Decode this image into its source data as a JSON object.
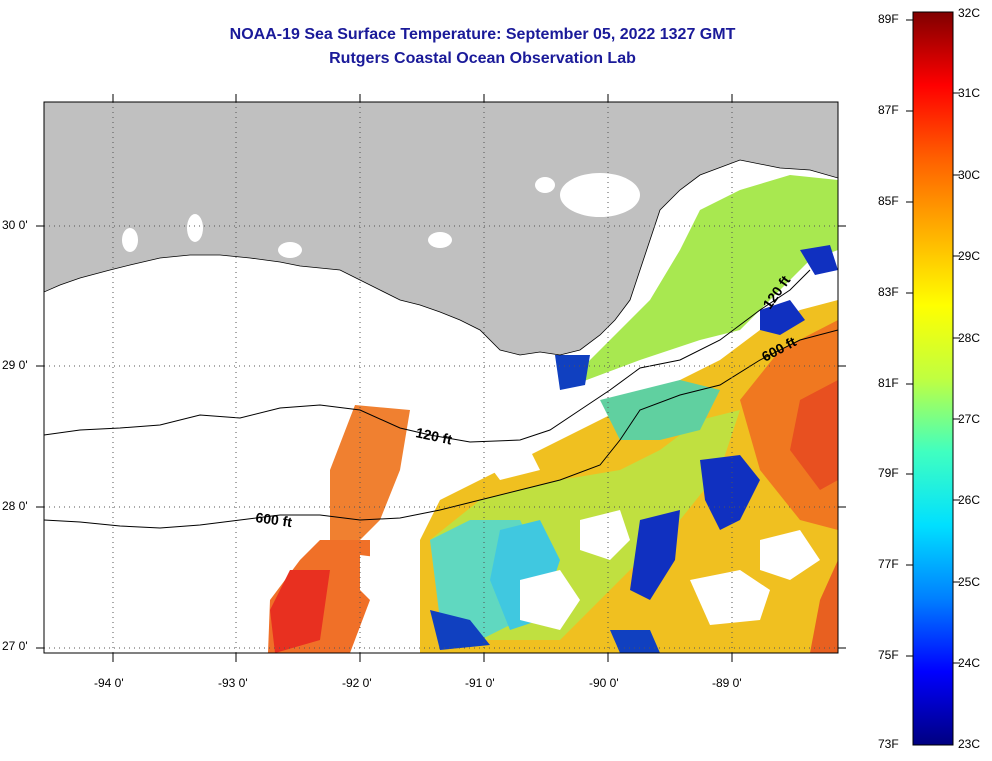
{
  "header": {
    "title": "NOAA-19 Sea Surface Temperature:  September 05, 2022 1327 GMT",
    "subtitle": "Rutgers Coastal Ocean Observation Lab"
  },
  "map": {
    "lat_labels": [
      "30 0'",
      "29 0'",
      "28 0'",
      "27 0'"
    ],
    "lon_labels": [
      "-94 0'",
      "-93 0'",
      "-92 0'",
      "-91 0'",
      "-90 0'",
      "-89 0'"
    ],
    "isobath_labels": [
      "120 ft",
      "600 ft",
      "120 ft",
      "600 ft"
    ]
  },
  "colorbar": {
    "fahrenheit": [
      "89F",
      "87F",
      "85F",
      "83F",
      "81F",
      "79F",
      "77F",
      "75F",
      "73F"
    ],
    "celsius": [
      "32C",
      "31C",
      "30C",
      "29C",
      "28C",
      "27C",
      "26C",
      "25C",
      "24C",
      "23C"
    ],
    "colors": [
      "#000080",
      "#0000ff",
      "#0080ff",
      "#00e0ff",
      "#40ffc0",
      "#c0ff40",
      "#ffff00",
      "#ffb000",
      "#ff6000",
      "#ff0000",
      "#800000"
    ]
  }
}
